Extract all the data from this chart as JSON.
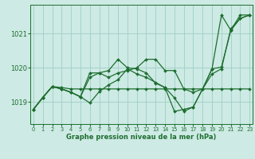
{
  "x": [
    0,
    1,
    2,
    3,
    4,
    5,
    6,
    7,
    8,
    9,
    10,
    11,
    12,
    13,
    14,
    15,
    16,
    17,
    18,
    19,
    20,
    21,
    22,
    23
  ],
  "line_flat": [
    1018.78,
    1019.13,
    1019.45,
    1019.42,
    1019.38,
    1019.38,
    1019.38,
    1019.38,
    1019.38,
    1019.38,
    1019.38,
    1019.38,
    1019.38,
    1019.38,
    1019.38,
    1019.38,
    1019.38,
    1019.38,
    1019.38,
    1019.38,
    1019.38,
    1019.38,
    1019.38,
    1019.38
  ],
  "line_zigzag": [
    1018.78,
    1019.13,
    1019.45,
    1019.38,
    1019.28,
    1019.15,
    1018.97,
    1019.3,
    1019.5,
    1019.65,
    1019.97,
    1019.82,
    1019.72,
    1019.57,
    1019.42,
    1018.72,
    1018.78,
    1018.85,
    1019.38,
    1019.97,
    1020.02,
    1021.1,
    1021.45,
    1021.55
  ],
  "line_hump": [
    1018.78,
    1019.13,
    1019.45,
    1019.38,
    1019.28,
    1019.15,
    1019.85,
    1019.85,
    1019.72,
    1019.85,
    1019.92,
    1020.0,
    1020.25,
    1020.25,
    1019.92,
    1019.92,
    1019.38,
    1019.28,
    1019.38,
    1019.82,
    1019.97,
    1021.15,
    1021.45,
    1021.55
  ],
  "line_rising": [
    1018.78,
    1019.13,
    1019.45,
    1019.38,
    1019.28,
    1019.15,
    1019.72,
    1019.85,
    1019.92,
    1020.25,
    1020.0,
    1019.97,
    1019.85,
    1019.55,
    1019.42,
    1019.12,
    1018.72,
    1018.85,
    1019.38,
    1019.97,
    1021.55,
    1021.1,
    1021.55,
    1021.55
  ],
  "bg_color": "#cdeae4",
  "grid_color": "#9ecfc5",
  "line_color": "#1e6e30",
  "ylabel_ticks": [
    1019,
    1020,
    1021
  ],
  "xlabel_ticks": [
    0,
    1,
    2,
    3,
    4,
    5,
    6,
    7,
    8,
    9,
    10,
    11,
    12,
    13,
    14,
    15,
    16,
    17,
    18,
    19,
    20,
    21,
    22,
    23
  ],
  "xlabel": "Graphe pression niveau de la mer (hPa)",
  "ylim": [
    1018.35,
    1021.85
  ],
  "xlim": [
    -0.3,
    23.3
  ],
  "markersize": 2.0,
  "linewidth": 0.9
}
